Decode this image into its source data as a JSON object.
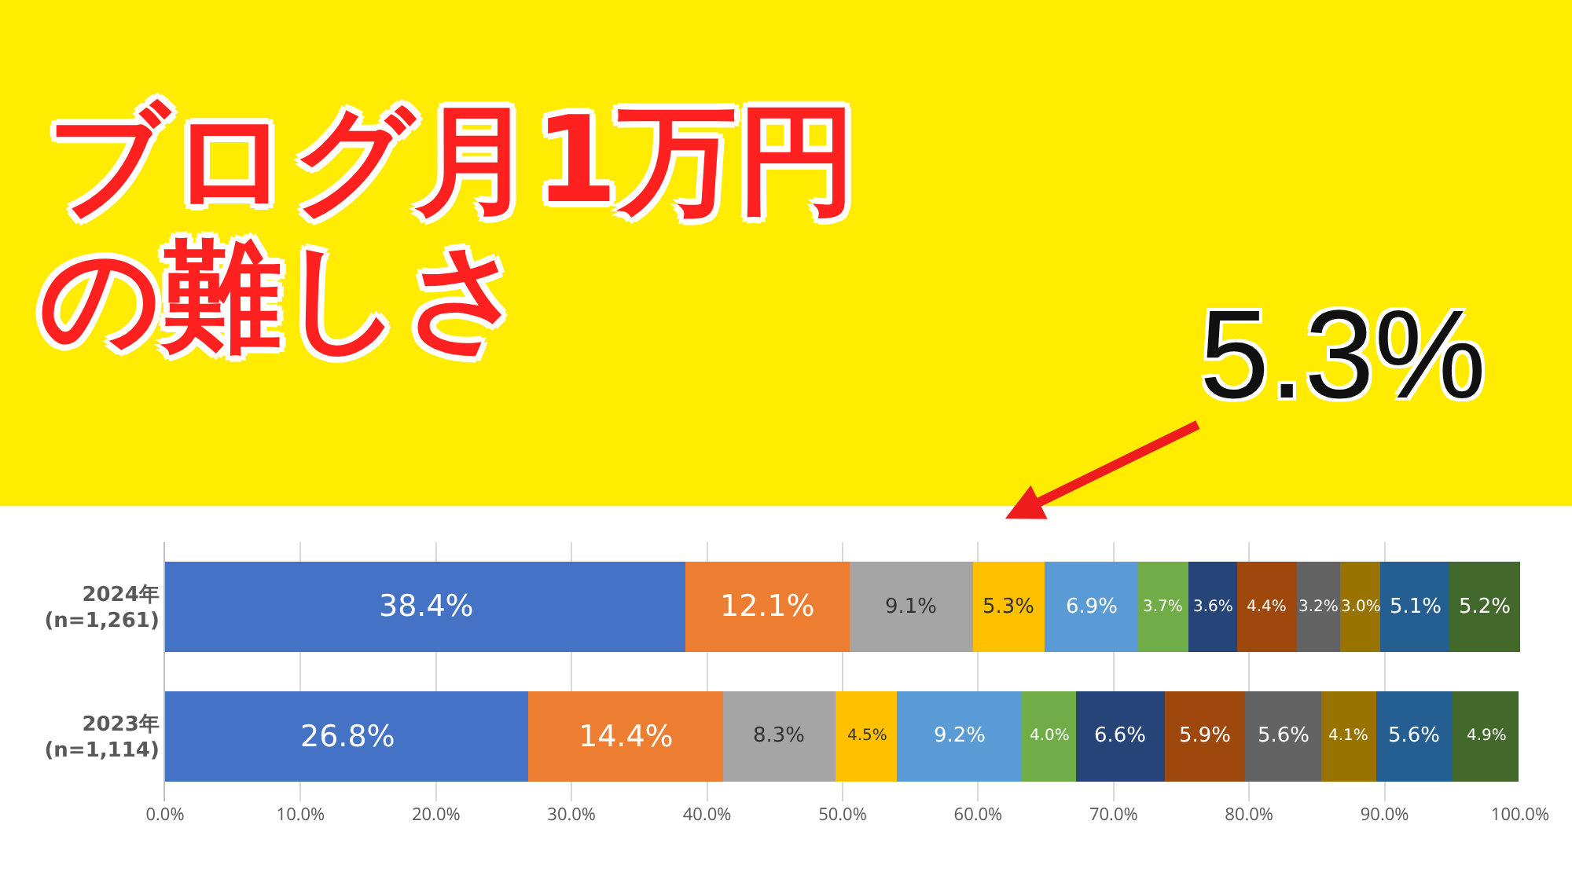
{
  "chart_data": {
    "type": "bar",
    "orientation": "horizontal",
    "stacked": true,
    "title": "ブログ月1万円",
    "subtitle": "の難しさ",
    "categories": [
      "2024年\n(n=1,261)",
      "2023年\n(n=1,114)"
    ],
    "series": [
      {
        "color": "#4472c4",
        "values": [
          38.4,
          26.8
        ],
        "value_labels": [
          "38.4%",
          "26.8%"
        ]
      },
      {
        "color": "#ed7d31",
        "values": [
          12.1,
          14.4
        ],
        "value_labels": [
          "12.1%",
          "14.4%"
        ]
      },
      {
        "color": "#a5a5a5",
        "values": [
          9.1,
          8.3
        ],
        "value_labels": [
          "9.1%",
          "8.3%"
        ]
      },
      {
        "color": "#ffc000",
        "values": [
          5.3,
          4.5
        ],
        "value_labels": [
          "5.3%",
          "4.5%"
        ]
      },
      {
        "color": "#5b9bd5",
        "values": [
          6.9,
          9.2
        ],
        "value_labels": [
          "6.9%",
          "9.2%"
        ]
      },
      {
        "color": "#70ad47",
        "values": [
          3.7,
          4.0
        ],
        "value_labels": [
          "3.7%",
          "4.0%"
        ]
      },
      {
        "color": "#264478",
        "values": [
          3.6,
          6.6
        ],
        "value_labels": [
          "3.6%",
          "6.6%"
        ]
      },
      {
        "color": "#9e480e",
        "values": [
          4.4,
          5.9
        ],
        "value_labels": [
          "4.4%",
          "5.9%"
        ]
      },
      {
        "color": "#636363",
        "values": [
          3.2,
          5.6
        ],
        "value_labels": [
          "3.2%",
          "5.6%"
        ]
      },
      {
        "color": "#997300",
        "values": [
          3.0,
          4.1
        ],
        "value_labels": [
          "3.0%",
          "4.1%"
        ]
      },
      {
        "color": "#255e91",
        "values": [
          5.1,
          5.6
        ],
        "value_labels": [
          "5.1%",
          "5.6%"
        ]
      },
      {
        "color": "#43682b",
        "values": [
          5.2,
          4.9
        ],
        "value_labels": [
          "5.2%",
          "4.9%"
        ]
      }
    ],
    "xlim": [
      0,
      100
    ],
    "xticks": [
      {
        "value": 0,
        "label": "0.0%"
      },
      {
        "value": 10,
        "label": "10.0%"
      },
      {
        "value": 20,
        "label": "20.0%"
      },
      {
        "value": 30,
        "label": "30.0%"
      },
      {
        "value": 40,
        "label": "40.0%"
      },
      {
        "value": 50,
        "label": "50.0%"
      },
      {
        "value": 60,
        "label": "60.0%"
      },
      {
        "value": 70,
        "label": "70.0%"
      },
      {
        "value": 80,
        "label": "80.0%"
      },
      {
        "value": 90,
        "label": "90.0%"
      },
      {
        "value": 100,
        "label": "100.0%"
      }
    ],
    "grid": "x",
    "legend": false,
    "annotations": [
      "5.3%"
    ]
  }
}
